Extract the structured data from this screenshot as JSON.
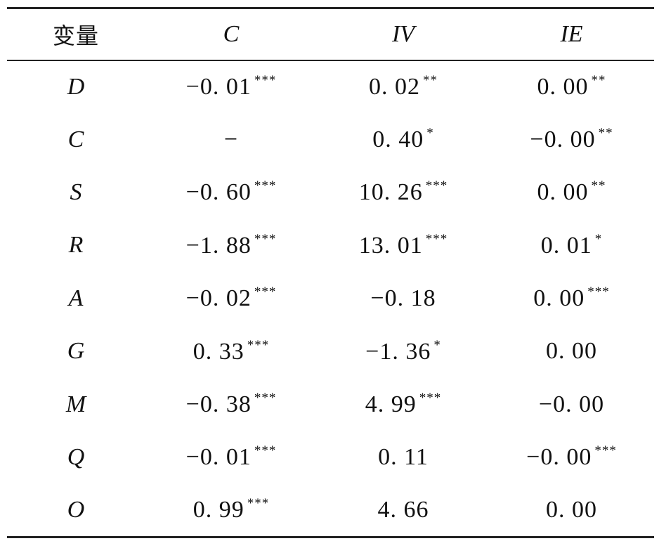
{
  "table": {
    "headers": [
      "变量",
      "C",
      "IV",
      "IE"
    ],
    "rows": [
      {
        "var": "D",
        "cells": [
          {
            "v": "−0. 01",
            "s": "***"
          },
          {
            "v": "0. 02",
            "s": "**"
          },
          {
            "v": "0. 00",
            "s": "**"
          }
        ]
      },
      {
        "var": "C",
        "cells": [
          {
            "v": "−",
            "s": ""
          },
          {
            "v": "0. 40",
            "s": "*"
          },
          {
            "v": "−0. 00",
            "s": "**"
          }
        ]
      },
      {
        "var": "S",
        "cells": [
          {
            "v": "−0. 60",
            "s": "***"
          },
          {
            "v": "10. 26",
            "s": "***"
          },
          {
            "v": "0. 00",
            "s": "**"
          }
        ]
      },
      {
        "var": "R",
        "cells": [
          {
            "v": "−1. 88",
            "s": "***"
          },
          {
            "v": "13. 01",
            "s": "***"
          },
          {
            "v": "0. 01",
            "s": "*"
          }
        ]
      },
      {
        "var": "A",
        "cells": [
          {
            "v": "−0. 02",
            "s": "***"
          },
          {
            "v": "−0. 18",
            "s": ""
          },
          {
            "v": "0. 00",
            "s": "***"
          }
        ]
      },
      {
        "var": "G",
        "cells": [
          {
            "v": "0. 33",
            "s": "***"
          },
          {
            "v": "−1. 36",
            "s": "*"
          },
          {
            "v": "0. 00",
            "s": ""
          }
        ]
      },
      {
        "var": "M",
        "cells": [
          {
            "v": "−0. 38",
            "s": "***"
          },
          {
            "v": "4. 99",
            "s": "***"
          },
          {
            "v": "−0. 00",
            "s": ""
          }
        ]
      },
      {
        "var": "Q",
        "cells": [
          {
            "v": "−0. 01",
            "s": "***"
          },
          {
            "v": "0. 11",
            "s": ""
          },
          {
            "v": "−0. 00",
            "s": "***"
          }
        ]
      },
      {
        "var": "O",
        "cells": [
          {
            "v": "0. 99",
            "s": "***"
          },
          {
            "v": "4. 66",
            "s": ""
          },
          {
            "v": "0. 00",
            "s": ""
          }
        ]
      }
    ]
  }
}
